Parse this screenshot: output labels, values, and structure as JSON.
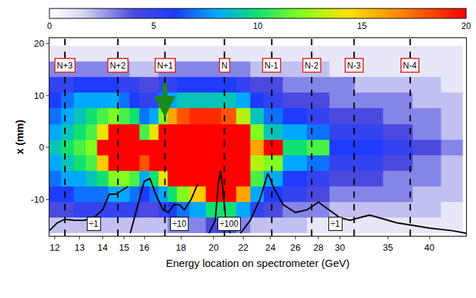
{
  "chart_data": {
    "type": "heatmap",
    "x_label": "Energy location on spectrometer (GeV)",
    "y_label": "x (mm)",
    "log": "x",
    "xlim": [
      11.8,
      45
    ],
    "xticks": [
      12,
      13,
      14,
      15,
      16,
      18,
      20,
      22,
      24,
      26,
      28,
      30,
      35,
      40
    ],
    "ylim": [
      -17,
      21
    ],
    "yticks": [
      -10,
      0,
      10,
      20
    ],
    "colorbar_range": [
      0,
      20
    ],
    "colorbar_ticks": [
      0,
      5,
      10,
      15,
      20
    ],
    "x": [
      12,
      12.5,
      13,
      13.5,
      14,
      14.5,
      15,
      15.5,
      16,
      16.5,
      17,
      17.5,
      18,
      19,
      20,
      21,
      22,
      23,
      24,
      26,
      28,
      30,
      33,
      36,
      40,
      43
    ],
    "y": [
      -15,
      -12,
      -9,
      -6,
      -3,
      0,
      3,
      6,
      9,
      12,
      15,
      18
    ],
    "z": [
      [
        2,
        2,
        2,
        2,
        2,
        2,
        2,
        2,
        2,
        2,
        2,
        3,
        3,
        3,
        4,
        4,
        3,
        2,
        2,
        2,
        1,
        1,
        1,
        1,
        1,
        1
      ],
      [
        4,
        4,
        5,
        5,
        5,
        5,
        5,
        5,
        4,
        4,
        5,
        6,
        7,
        8,
        10,
        10,
        8,
        5,
        4,
        3,
        3,
        2,
        2,
        2,
        2,
        1
      ],
      [
        6,
        6,
        7,
        7,
        7,
        8,
        8,
        7,
        6,
        7,
        8,
        10,
        12,
        15,
        20,
        20,
        16,
        8,
        6,
        5,
        4,
        3,
        3,
        3,
        2,
        2
      ],
      [
        7,
        8,
        8,
        9,
        10,
        12,
        12,
        11,
        8,
        10,
        14,
        20,
        20,
        20,
        20,
        20,
        20,
        11,
        8,
        6,
        5,
        4,
        4,
        3,
        3,
        2
      ],
      [
        8,
        9,
        10,
        11,
        15,
        20,
        20,
        20,
        18,
        20,
        20,
        20,
        20,
        20,
        20,
        20,
        20,
        13,
        12,
        8,
        7,
        5,
        5,
        4,
        3,
        2
      ],
      [
        9,
        10,
        11,
        12,
        20,
        20,
        20,
        20,
        20,
        20,
        20,
        20,
        20,
        20,
        20,
        20,
        20,
        16,
        20,
        10,
        11,
        6,
        6,
        5,
        4,
        3
      ],
      [
        8,
        9,
        10,
        11,
        14,
        20,
        20,
        20,
        11,
        14,
        20,
        20,
        20,
        20,
        20,
        20,
        20,
        12,
        9,
        8,
        7,
        5,
        5,
        4,
        3,
        2
      ],
      [
        7,
        8,
        9,
        10,
        11,
        12,
        11,
        10,
        7,
        8,
        12,
        16,
        18,
        19,
        19,
        18,
        13,
        9,
        7,
        6,
        5,
        4,
        4,
        3,
        3,
        2
      ],
      [
        6,
        7,
        8,
        8,
        8,
        8,
        7,
        6,
        5,
        5,
        7,
        8,
        9,
        9,
        9,
        9,
        8,
        6,
        5,
        4,
        4,
        3,
        3,
        3,
        2,
        2
      ],
      [
        5,
        5,
        6,
        6,
        6,
        6,
        5,
        5,
        4,
        4,
        5,
        5,
        6,
        6,
        6,
        6,
        5,
        4,
        4,
        3,
        3,
        3,
        2,
        2,
        2,
        1
      ],
      [
        3,
        3,
        3,
        3,
        3,
        3,
        3,
        2,
        2,
        2,
        3,
        3,
        3,
        3,
        3,
        3,
        3,
        2,
        2,
        2,
        2,
        1,
        1,
        1,
        1,
        1
      ],
      [
        1,
        1,
        1,
        1,
        1,
        1,
        1,
        1,
        1,
        1,
        1,
        1,
        1,
        1,
        1,
        1,
        1,
        1,
        1,
        1,
        1,
        1,
        1,
        1,
        1,
        1
      ]
    ],
    "markers": [
      {
        "label": "N+3",
        "x": 12.4
      },
      {
        "label": "N+2",
        "x": 14.7
      },
      {
        "label": "N+1",
        "x": 17.1
      },
      {
        "label": "N",
        "x": 20.7
      },
      {
        "label": "N-1",
        "x": 24.1
      },
      {
        "label": "N-2",
        "x": 27.4
      },
      {
        "label": "N-3",
        "x": 31.4
      },
      {
        "label": "N-4",
        "x": 37.6
      }
    ],
    "lineouts": [
      {
        "label": "÷1",
        "label_x": 13.6,
        "x": [
          11.8,
          12.1,
          12.4,
          12.8,
          13.2,
          13.6,
          14.0,
          14.3,
          14.6,
          15.0,
          15.2
        ],
        "y": [
          -16,
          -14.5,
          -13.8,
          -14,
          -14,
          -13.5,
          -12,
          -9,
          -9,
          -8,
          -7.5
        ]
      },
      {
        "label": "÷10",
        "label_x": 17.9,
        "x": [
          15.3,
          15.6,
          16.0,
          16.3,
          16.6,
          17.0,
          17.3,
          17.6,
          17.9,
          18.2,
          18.6,
          19.0
        ],
        "y": [
          -16.5,
          -12,
          -6.5,
          -6,
          -9,
          -12,
          -12.5,
          -11,
          -11,
          -12,
          -10,
          -7
        ]
      },
      {
        "label": "÷100",
        "label_x": 21.0,
        "x": [
          19.7,
          20.1,
          20.3,
          20.45,
          20.6,
          20.8,
          21.1
        ],
        "y": [
          -16.5,
          -14,
          -7,
          -4.5,
          -8,
          -14,
          -16.5
        ]
      },
      {
        "label": "÷1",
        "label_x": 29.6,
        "x": [
          21.8,
          22.5,
          23.2,
          23.8,
          24.3,
          25,
          26,
          27,
          28,
          29,
          30,
          31,
          32,
          33,
          34,
          36,
          38,
          40,
          43,
          45
        ],
        "y": [
          -16.5,
          -14,
          -10,
          -5,
          -8,
          -11,
          -12.5,
          -12,
          -10.5,
          -12,
          -13.5,
          -14,
          -13.5,
          -13,
          -13.5,
          -14.5,
          -15,
          -15.5,
          -16,
          -16.5
        ]
      }
    ]
  }
}
